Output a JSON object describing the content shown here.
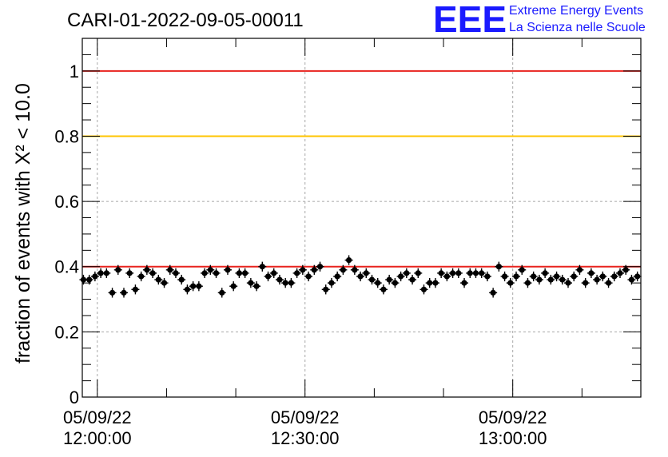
{
  "chart_data": {
    "type": "scatter",
    "title": "CARI-01-2022-09-05-00011",
    "ylabel": "fraction of events with X² < 10.0",
    "xlabel": "",
    "xlim": [
      "2022-09-05 11:57:50",
      "2022-09-05 13:18:30"
    ],
    "ylim": [
      0,
      1.1
    ],
    "y_ticks": [
      0,
      0.2,
      0.4,
      0.6,
      0.8,
      1
    ],
    "y_tick_labels": [
      "0",
      "0.2",
      "0.4",
      "0.6",
      "0.8",
      "1"
    ],
    "x_ticks": [
      {
        "time": "2022-09-05 12:00:00",
        "date_label": "05/09/22",
        "time_label": "12:00:00"
      },
      {
        "time": "2022-09-05 12:30:00",
        "date_label": "05/09/22",
        "time_label": "12:30:00"
      },
      {
        "time": "2022-09-05 13:00:00",
        "date_label": "05/09/22",
        "time_label": "13:00:00"
      }
    ],
    "grid": true,
    "reference_lines": [
      {
        "y": 1.0,
        "color": "#e8231e"
      },
      {
        "y": 0.8,
        "color": "#ffc400"
      },
      {
        "y": 0.4,
        "color": "#e8231e"
      }
    ],
    "series": [
      {
        "marker_color": "#000000",
        "x": [
          "11:58:00",
          "11:58:50",
          "11:59:40",
          "12:00:30",
          "12:01:20",
          "12:02:10",
          "12:03:00",
          "12:03:50",
          "12:04:40",
          "12:05:30",
          "12:06:20",
          "12:07:10",
          "12:08:00",
          "12:08:50",
          "12:09:40",
          "12:10:30",
          "12:11:20",
          "12:12:10",
          "12:13:00",
          "12:13:50",
          "12:14:40",
          "12:15:30",
          "12:16:20",
          "12:17:10",
          "12:18:00",
          "12:18:50",
          "12:19:40",
          "12:20:30",
          "12:21:20",
          "12:22:10",
          "12:23:00",
          "12:23:50",
          "12:24:40",
          "12:25:30",
          "12:26:20",
          "12:27:10",
          "12:28:00",
          "12:28:50",
          "12:29:40",
          "12:30:30",
          "12:31:20",
          "12:32:10",
          "12:33:00",
          "12:33:50",
          "12:34:40",
          "12:35:30",
          "12:36:20",
          "12:37:10",
          "12:38:00",
          "12:38:50",
          "12:39:40",
          "12:40:30",
          "12:41:20",
          "12:42:10",
          "12:43:00",
          "12:43:50",
          "12:44:40",
          "12:45:30",
          "12:46:20",
          "12:47:10",
          "12:48:00",
          "12:48:50",
          "12:49:40",
          "12:50:30",
          "12:51:20",
          "12:52:10",
          "12:53:00",
          "12:53:50",
          "12:54:40",
          "12:55:30",
          "12:56:20",
          "12:57:10",
          "12:58:00",
          "12:58:50",
          "12:59:40",
          "13:00:30",
          "13:01:20",
          "13:02:10",
          "13:03:00",
          "13:03:50",
          "13:04:40",
          "13:05:30",
          "13:06:20",
          "13:07:10",
          "13:08:00",
          "13:08:50",
          "13:09:40",
          "13:10:30",
          "13:11:20",
          "13:12:10",
          "13:13:00",
          "13:13:50",
          "13:14:40",
          "13:15:30",
          "13:16:20",
          "13:17:10",
          "13:18:00"
        ],
        "y": [
          0.36,
          0.36,
          0.37,
          0.38,
          0.38,
          0.32,
          0.39,
          0.32,
          0.38,
          0.33,
          0.37,
          0.39,
          0.38,
          0.36,
          0.35,
          0.39,
          0.38,
          0.36,
          0.33,
          0.34,
          0.34,
          0.38,
          0.39,
          0.38,
          0.32,
          0.39,
          0.34,
          0.38,
          0.38,
          0.35,
          0.34,
          0.4,
          0.37,
          0.38,
          0.36,
          0.35,
          0.35,
          0.38,
          0.39,
          0.37,
          0.39,
          0.4,
          0.33,
          0.35,
          0.37,
          0.39,
          0.42,
          0.39,
          0.37,
          0.38,
          0.36,
          0.35,
          0.33,
          0.36,
          0.35,
          0.37,
          0.38,
          0.36,
          0.38,
          0.33,
          0.35,
          0.35,
          0.38,
          0.37,
          0.38,
          0.38,
          0.35,
          0.38,
          0.38,
          0.38,
          0.37,
          0.32,
          0.4,
          0.37,
          0.35,
          0.37,
          0.39,
          0.35,
          0.37,
          0.36,
          0.38,
          0.36,
          0.37,
          0.36,
          0.35,
          0.37,
          0.39,
          0.35,
          0.38,
          0.36,
          0.37,
          0.35,
          0.37,
          0.38,
          0.39,
          0.36,
          0.37
        ],
        "y_err": 0.015
      }
    ]
  },
  "logo": {
    "mark": "EEE",
    "line1": "Extreme Energy Events",
    "line2": "La Scienza nelle Scuole",
    "color": "#1a1aff"
  }
}
